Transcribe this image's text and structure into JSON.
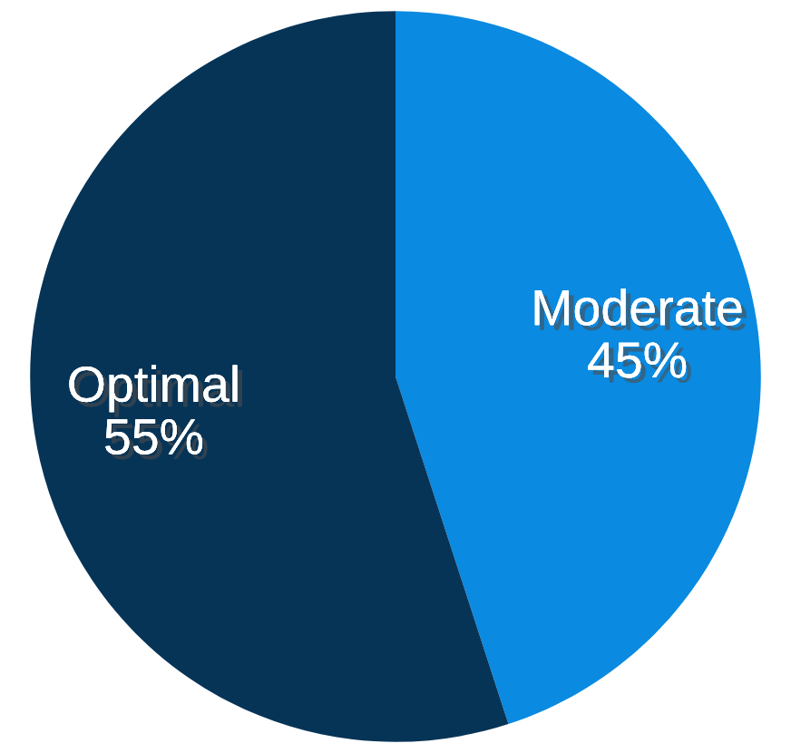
{
  "chart_data": {
    "type": "pie",
    "categories": [
      "Moderate",
      "Optimal"
    ],
    "values": [
      45,
      55
    ],
    "colors": [
      "#0a8ae0",
      "#063457"
    ],
    "value_labels": [
      "45%",
      "55%"
    ]
  }
}
